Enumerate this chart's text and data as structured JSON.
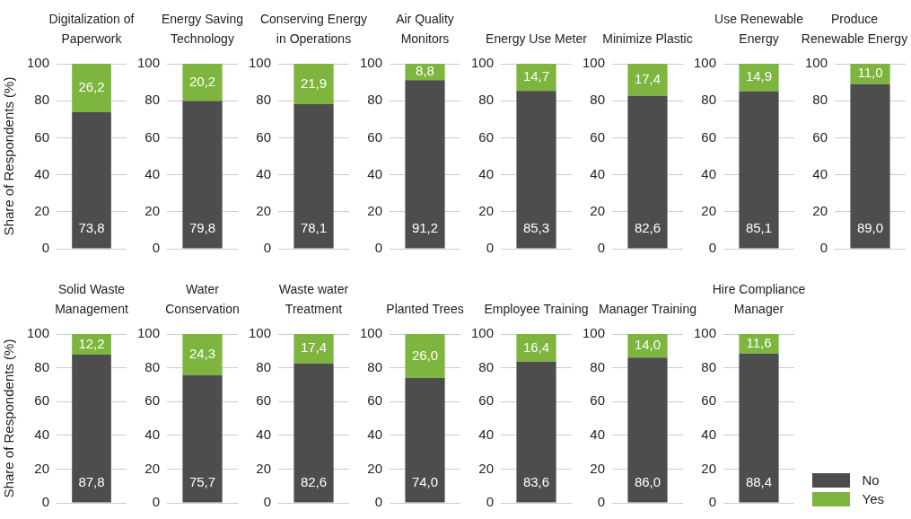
{
  "chart_data": [
    {
      "type": "bar",
      "title": "Digitalization of Paperwork",
      "ylabel": "Share of Respondents (%)",
      "categories": [
        null
      ],
      "stacked": true,
      "ylim": [
        0,
        100
      ],
      "yticks": [
        0,
        20,
        40,
        60,
        80,
        100
      ],
      "grid": "y",
      "tick_labels": "y",
      "series": [
        {
          "color": "#4d4d4d",
          "values": [
            73.8
          ],
          "value_labels": [
            "73,8"
          ]
        },
        {
          "color": "#7db53e",
          "values": [
            26.2
          ],
          "value_labels": [
            "26,2"
          ]
        }
      ]
    },
    {
      "type": "bar",
      "title": "Energy Saving Technology",
      "categories": [
        null
      ],
      "stacked": true,
      "ylim": [
        0,
        100
      ],
      "yticks": [
        0,
        20,
        40,
        60,
        80,
        100
      ],
      "grid": "y",
      "tick_labels": "y",
      "series": [
        {
          "color": "#4d4d4d",
          "values": [
            79.8
          ],
          "value_labels": [
            "79,8"
          ]
        },
        {
          "color": "#7db53e",
          "values": [
            20.2
          ],
          "value_labels": [
            "20,2"
          ]
        }
      ]
    },
    {
      "type": "bar",
      "title": "Conserving Energy in Operations",
      "categories": [
        null
      ],
      "stacked": true,
      "ylim": [
        0,
        100
      ],
      "yticks": [
        0,
        20,
        40,
        60,
        80,
        100
      ],
      "grid": "y",
      "tick_labels": "y",
      "series": [
        {
          "color": "#4d4d4d",
          "values": [
            78.1
          ],
          "value_labels": [
            "78,1"
          ]
        },
        {
          "color": "#7db53e",
          "values": [
            21.9
          ],
          "value_labels": [
            "21,9"
          ]
        }
      ]
    },
    {
      "type": "bar",
      "title": "Air Quality Monitors",
      "categories": [
        null
      ],
      "stacked": true,
      "ylim": [
        0,
        100
      ],
      "yticks": [
        0,
        20,
        40,
        60,
        80,
        100
      ],
      "grid": "y",
      "tick_labels": "y",
      "series": [
        {
          "color": "#4d4d4d",
          "values": [
            91.2
          ],
          "value_labels": [
            "91,2"
          ]
        },
        {
          "color": "#7db53e",
          "values": [
            8.8
          ],
          "value_labels": [
            "8,8"
          ]
        }
      ]
    },
    {
      "type": "bar",
      "title": "Energy Use Meter",
      "categories": [
        null
      ],
      "stacked": true,
      "ylim": [
        0,
        100
      ],
      "yticks": [
        0,
        20,
        40,
        60,
        80,
        100
      ],
      "grid": "y",
      "tick_labels": "y",
      "series": [
        {
          "color": "#4d4d4d",
          "values": [
            85.3
          ],
          "value_labels": [
            "85,3"
          ]
        },
        {
          "color": "#7db53e",
          "values": [
            14.7
          ],
          "value_labels": [
            "14,7"
          ]
        }
      ]
    },
    {
      "type": "bar",
      "title": "Minimize Plastic",
      "categories": [
        null
      ],
      "stacked": true,
      "ylim": [
        0,
        100
      ],
      "yticks": [
        0,
        20,
        40,
        60,
        80,
        100
      ],
      "grid": "y",
      "tick_labels": "y",
      "series": [
        {
          "color": "#4d4d4d",
          "values": [
            82.6
          ],
          "value_labels": [
            "82,6"
          ]
        },
        {
          "color": "#7db53e",
          "values": [
            17.4
          ],
          "value_labels": [
            "17,4"
          ]
        }
      ]
    },
    {
      "type": "bar",
      "title": "Use Renewable Energy",
      "categories": [
        null
      ],
      "stacked": true,
      "ylim": [
        0,
        100
      ],
      "yticks": [
        0,
        20,
        40,
        60,
        80,
        100
      ],
      "grid": "y",
      "tick_labels": "y",
      "series": [
        {
          "color": "#4d4d4d",
          "values": [
            85.1
          ],
          "value_labels": [
            "85,1"
          ]
        },
        {
          "color": "#7db53e",
          "values": [
            14.9
          ],
          "value_labels": [
            "14,9"
          ]
        }
      ]
    },
    {
      "type": "bar",
      "title": "Produce Renewable Energy",
      "categories": [
        null
      ],
      "stacked": true,
      "ylim": [
        0,
        100
      ],
      "yticks": [
        0,
        20,
        40,
        60,
        80,
        100
      ],
      "grid": "y",
      "tick_labels": "y",
      "series": [
        {
          "color": "#4d4d4d",
          "values": [
            89.0
          ],
          "value_labels": [
            "89,0"
          ]
        },
        {
          "color": "#7db53e",
          "values": [
            11.0
          ],
          "value_labels": [
            "11,0"
          ]
        }
      ]
    },
    {
      "type": "bar",
      "title": "Solid Waste Management",
      "ylabel": "Share of Respondents (%)",
      "categories": [
        null
      ],
      "stacked": true,
      "ylim": [
        0,
        100
      ],
      "yticks": [
        0,
        20,
        40,
        60,
        80,
        100
      ],
      "grid": "y",
      "tick_labels": "y",
      "series": [
        {
          "color": "#4d4d4d",
          "values": [
            87.8
          ],
          "value_labels": [
            "87,8"
          ]
        },
        {
          "color": "#7db53e",
          "values": [
            12.2
          ],
          "value_labels": [
            "12,2"
          ]
        }
      ]
    },
    {
      "type": "bar",
      "title": "Water Conservation",
      "categories": [
        null
      ],
      "stacked": true,
      "ylim": [
        0,
        100
      ],
      "yticks": [
        0,
        20,
        40,
        60,
        80,
        100
      ],
      "grid": "y",
      "tick_labels": "y",
      "series": [
        {
          "color": "#4d4d4d",
          "values": [
            75.7
          ],
          "value_labels": [
            "75,7"
          ]
        },
        {
          "color": "#7db53e",
          "values": [
            24.3
          ],
          "value_labels": [
            "24,3"
          ]
        }
      ]
    },
    {
      "type": "bar",
      "title": "Waste water Treatment",
      "categories": [
        null
      ],
      "stacked": true,
      "ylim": [
        0,
        100
      ],
      "yticks": [
        0,
        20,
        40,
        60,
        80,
        100
      ],
      "grid": "y",
      "tick_labels": "y",
      "series": [
        {
          "color": "#4d4d4d",
          "values": [
            82.6
          ],
          "value_labels": [
            "82,6"
          ]
        },
        {
          "color": "#7db53e",
          "values": [
            17.4
          ],
          "value_labels": [
            "17,4"
          ]
        }
      ]
    },
    {
      "type": "bar",
      "title": "Planted Trees",
      "categories": [
        null
      ],
      "stacked": true,
      "ylim": [
        0,
        100
      ],
      "yticks": [
        0,
        20,
        40,
        60,
        80,
        100
      ],
      "grid": "y",
      "tick_labels": "y",
      "series": [
        {
          "color": "#4d4d4d",
          "values": [
            74.0
          ],
          "value_labels": [
            "74,0"
          ]
        },
        {
          "color": "#7db53e",
          "values": [
            26.0
          ],
          "value_labels": [
            "26,0"
          ]
        }
      ]
    },
    {
      "type": "bar",
      "title": "Employee Training",
      "categories": [
        null
      ],
      "stacked": true,
      "ylim": [
        0,
        100
      ],
      "yticks": [
        0,
        20,
        40,
        60,
        80,
        100
      ],
      "grid": "y",
      "tick_labels": "y",
      "series": [
        {
          "color": "#4d4d4d",
          "values": [
            83.6
          ],
          "value_labels": [
            "83,6"
          ]
        },
        {
          "color": "#7db53e",
          "values": [
            16.4
          ],
          "value_labels": [
            "16,4"
          ]
        }
      ]
    },
    {
      "type": "bar",
      "title": "Manager Training",
      "categories": [
        null
      ],
      "stacked": true,
      "ylim": [
        0,
        100
      ],
      "yticks": [
        0,
        20,
        40,
        60,
        80,
        100
      ],
      "grid": "y",
      "tick_labels": "y",
      "series": [
        {
          "color": "#4d4d4d",
          "values": [
            86.0
          ],
          "value_labels": [
            "86,0"
          ]
        },
        {
          "color": "#7db53e",
          "values": [
            14.0
          ],
          "value_labels": [
            "14,0"
          ]
        }
      ]
    },
    {
      "type": "bar",
      "title": "Hire Compliance Manager",
      "categories": [
        null
      ],
      "stacked": true,
      "ylim": [
        0,
        100
      ],
      "yticks": [
        0,
        20,
        40,
        60,
        80,
        100
      ],
      "grid": "y",
      "tick_labels": "y",
      "legend": "bottom right",
      "series": [
        {
          "name": "No",
          "color": "#4d4d4d",
          "values": [
            88.4
          ],
          "value_labels": [
            "88,4"
          ]
        },
        {
          "name": "Yes",
          "color": "#7db53e",
          "values": [
            11.6
          ],
          "value_labels": [
            "11,6"
          ]
        }
      ]
    }
  ]
}
